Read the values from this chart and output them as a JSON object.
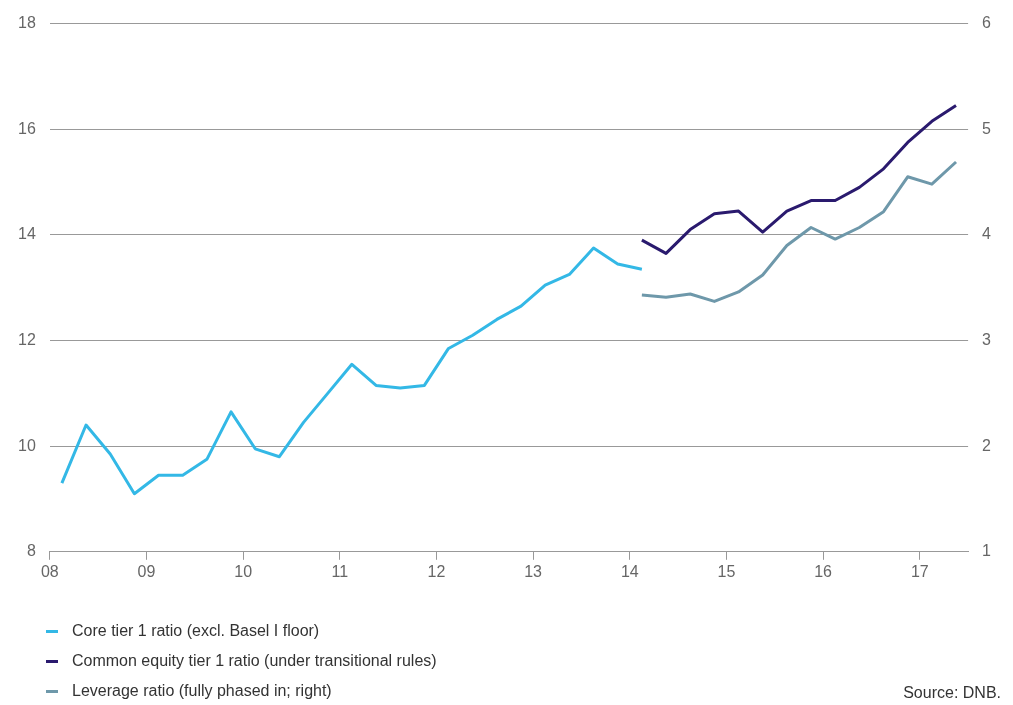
{
  "chart_data": {
    "type": "line",
    "xlim": [
      8,
      17.5
    ],
    "xticks": [
      {
        "value": 8,
        "label": "08"
      },
      {
        "value": 9,
        "label": "09"
      },
      {
        "value": 10,
        "label": "10"
      },
      {
        "value": 11,
        "label": "11"
      },
      {
        "value": 12,
        "label": "12"
      },
      {
        "value": 13,
        "label": "13"
      },
      {
        "value": 14,
        "label": "14"
      },
      {
        "value": 15,
        "label": "15"
      },
      {
        "value": 16,
        "label": "16"
      },
      {
        "value": 17,
        "label": "17"
      }
    ],
    "ylim": [
      8,
      18
    ],
    "yticks": [
      8,
      10,
      12,
      14,
      16,
      18
    ],
    "y2lim": [
      1,
      6
    ],
    "y2ticks": [
      1,
      2,
      3,
      4,
      5,
      6
    ],
    "grid": "y",
    "legend": "bottom",
    "marker": "none",
    "line_style": "solid",
    "series": [
      {
        "name": "Core tier 1 ratio (excl. Basel I floor)",
        "color": "#33b8e6",
        "x": [
          8.125,
          8.375,
          8.625,
          8.875,
          9.125,
          9.375,
          9.625,
          9.875,
          10.125,
          10.375,
          10.625,
          10.875,
          11.125,
          11.375,
          11.625,
          11.875,
          12.125,
          12.375,
          12.625,
          12.875,
          13.125,
          13.375,
          13.625,
          13.875,
          14.125
        ],
        "values": [
          9.3,
          10.4,
          9.85,
          9.1,
          9.45,
          9.45,
          9.75,
          10.65,
          9.95,
          9.8,
          10.45,
          11.0,
          11.55,
          11.15,
          11.1,
          11.15,
          11.85,
          12.1,
          12.4,
          12.65,
          13.05,
          13.25,
          13.75,
          13.45,
          13.35
        ]
      },
      {
        "name": "Common equity tier 1 ratio (under transitional rules)",
        "color": "#2a1a6e",
        "x": [
          14.125,
          14.375,
          14.625,
          14.875,
          15.125,
          15.375,
          15.625,
          15.875,
          16.125,
          16.375,
          16.625,
          16.875,
          17.125,
          17.375
        ],
        "values": [
          13.9,
          13.65,
          14.1,
          14.4,
          14.45,
          14.05,
          14.45,
          14.65,
          14.65,
          14.9,
          15.25,
          15.75,
          16.15,
          16.45
        ]
      },
      {
        "name": "Leverage ratio (fully phased in; right)",
        "color": "#6e98aa",
        "axis": "y2",
        "x": [
          14.125,
          14.375,
          14.625,
          14.875,
          15.125,
          15.375,
          15.625,
          15.875,
          16.125,
          16.375,
          16.625,
          16.875,
          17.125,
          17.375
        ],
        "values": [
          3.43,
          3.41,
          3.44,
          3.37,
          3.46,
          3.62,
          3.9,
          4.07,
          3.96,
          4.07,
          4.22,
          4.55,
          4.48,
          4.69
        ]
      }
    ],
    "annotations": [
      "Source: DNB."
    ]
  }
}
